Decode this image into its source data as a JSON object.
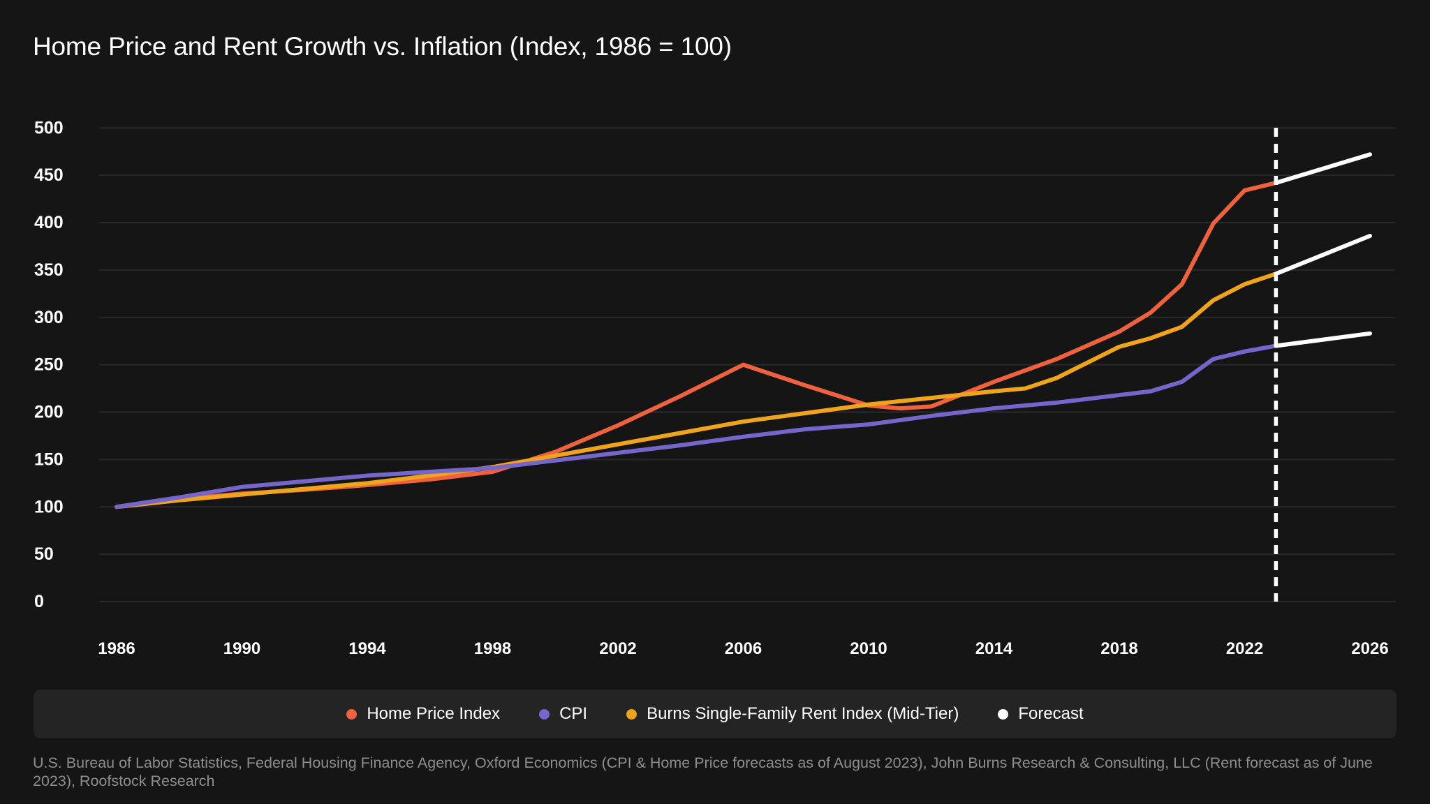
{
  "title": "Home Price and Rent Growth vs. Inflation (Index, 1986 = 100)",
  "colors": {
    "background": "#151515",
    "legend_bar": "#242424",
    "gridline": "#2a2a2a",
    "axis_text": "#ffffff",
    "footer_text": "#8e8e8e",
    "home_price_index": "#f0623d",
    "cpi": "#7566cb",
    "rent_index": "#f0a41e",
    "forecast": "#ffffff"
  },
  "chart_data": {
    "type": "line",
    "title": "Home Price and Rent Growth vs. Inflation (Index, 1986 = 100)",
    "xlabel": "",
    "ylabel": "",
    "x_axis": {
      "ticks": [
        1986,
        1990,
        1994,
        1998,
        2002,
        2006,
        2010,
        2014,
        2018,
        2022,
        2026
      ],
      "range": [
        1986,
        2026
      ]
    },
    "y_axis": {
      "ticks": [
        0,
        50,
        100,
        150,
        200,
        250,
        300,
        350,
        400,
        450,
        500
      ],
      "range": [
        0,
        500
      ],
      "grid": true
    },
    "forecast_divider_year": 2023,
    "legend_position": "bottom",
    "series": [
      {
        "name": "Home Price Index",
        "color": "#f0623d",
        "x": [
          1986,
          1988,
          1990,
          1992,
          1994,
          1996,
          1998,
          2000,
          2002,
          2004,
          2006,
          2008,
          2010,
          2011,
          2012,
          2014,
          2016,
          2018,
          2019,
          2020,
          2021,
          2022,
          2023
        ],
        "y": [
          100,
          108,
          114,
          118,
          123,
          129,
          137,
          158,
          186,
          217,
          250,
          228,
          207,
          204,
          206,
          232,
          256,
          285,
          305,
          335,
          399,
          434,
          442
        ]
      },
      {
        "name": "Burns Single-Family Rent Index (Mid-Tier)",
        "color": "#f0a41e",
        "x": [
          1986,
          1988,
          1990,
          1992,
          1994,
          1996,
          1998,
          2000,
          2002,
          2004,
          2006,
          2008,
          2010,
          2012,
          2014,
          2015,
          2016,
          2018,
          2019,
          2020,
          2021,
          2022,
          2023
        ],
        "y": [
          100,
          107,
          113,
          119,
          125,
          133,
          142,
          154,
          166,
          178,
          190,
          199,
          208,
          215,
          222,
          225,
          236,
          269,
          278,
          290,
          318,
          335,
          346
        ]
      },
      {
        "name": "CPI",
        "color": "#7566cb",
        "x": [
          1986,
          1988,
          1990,
          1992,
          1994,
          1996,
          1998,
          2000,
          2002,
          2004,
          2006,
          2008,
          2010,
          2012,
          2014,
          2016,
          2018,
          2019,
          2020,
          2021,
          2022,
          2023
        ],
        "y": [
          100,
          110,
          121,
          127,
          133,
          137,
          141,
          149,
          157,
          165,
          174,
          182,
          187,
          196,
          204,
          210,
          218,
          222,
          232,
          256,
          264,
          270
        ]
      },
      {
        "name": "Forecast Home Price Index",
        "color": "#ffffff",
        "forecast": true,
        "x": [
          2023,
          2026
        ],
        "y": [
          442,
          472
        ]
      },
      {
        "name": "Forecast Rent Index",
        "color": "#ffffff",
        "forecast": true,
        "x": [
          2023,
          2026
        ],
        "y": [
          346,
          386
        ]
      },
      {
        "name": "Forecast CPI",
        "color": "#ffffff",
        "forecast": true,
        "x": [
          2023,
          2026
        ],
        "y": [
          270,
          283
        ]
      }
    ],
    "legend": [
      {
        "label": "Home Price Index",
        "color": "#f0623d"
      },
      {
        "label": "CPI",
        "color": "#7566cb"
      },
      {
        "label": "Burns Single-Family Rent Index (Mid-Tier)",
        "color": "#f0a41e"
      },
      {
        "label": "Forecast",
        "color": "#ffffff"
      }
    ]
  },
  "footer": {
    "source": "U.S. Bureau of Labor Statistics, Federal Housing Finance Agency, Oxford Economics (CPI & Home Price forecasts as of August 2023), John Burns Research & Consulting, LLC (Rent forecast as of June 2023), Roofstock Research"
  }
}
